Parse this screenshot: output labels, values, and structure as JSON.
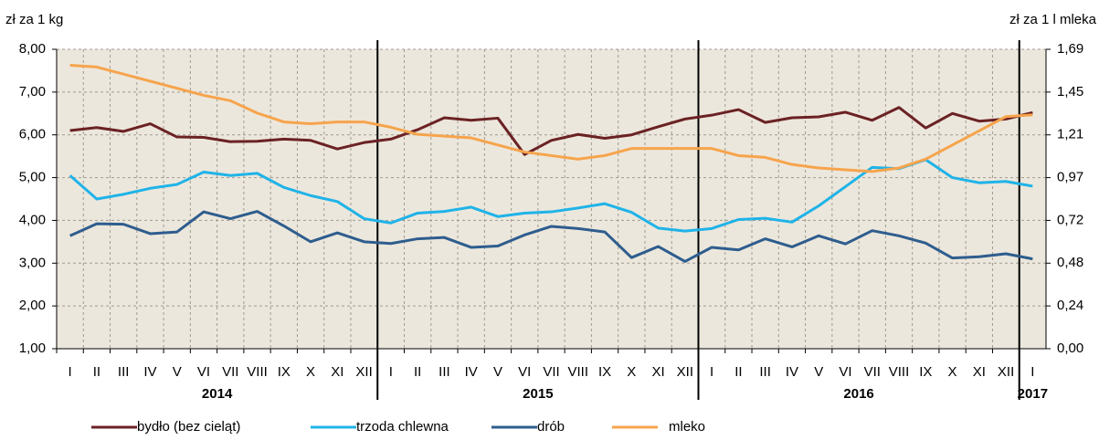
{
  "chart_data": {
    "type": "line",
    "y_label": "zł za 1 kg",
    "y2_label": "zł za 1 l mleka",
    "categories": [
      "I",
      "II",
      "III",
      "IV",
      "V",
      "VI",
      "VII",
      "VIII",
      "IX",
      "X",
      "XI",
      "XII",
      "I",
      "II",
      "III",
      "IV",
      "V",
      "VI",
      "VII",
      "VIII",
      "IX",
      "X",
      "XI",
      "XII",
      "I",
      "II",
      "III",
      "IV",
      "V",
      "VI",
      "VII",
      "VIII",
      "IX",
      "X",
      "XI",
      "XII",
      "I"
    ],
    "years": [
      "2014",
      "2015",
      "2016",
      "2017"
    ],
    "ylim": [
      1,
      8
    ],
    "yticks": [
      {
        "value": 1,
        "label": "1,00"
      },
      {
        "value": 2,
        "label": "2,00"
      },
      {
        "value": 3,
        "label": "3,00"
      },
      {
        "value": 4,
        "label": "4,00"
      },
      {
        "value": 5,
        "label": "5,00"
      },
      {
        "value": 6,
        "label": "6,00"
      },
      {
        "value": 7,
        "label": "7,00"
      },
      {
        "value": 8,
        "label": "8,00"
      }
    ],
    "y2lim": [
      0,
      1.69
    ],
    "y2ticks": [
      {
        "value": 0,
        "label": "0,00"
      },
      {
        "value": 0.2414,
        "label": "0,24"
      },
      {
        "value": 0.4829,
        "label": "0,48"
      },
      {
        "value": 0.7243,
        "label": "0,72"
      },
      {
        "value": 0.9657,
        "label": "0,97"
      },
      {
        "value": 1.2071,
        "label": "1,21"
      },
      {
        "value": 1.4486,
        "label": "1,45"
      },
      {
        "value": 1.69,
        "label": "1,69"
      }
    ],
    "grid": true,
    "series": [
      {
        "name": "bydło (bez cieląt)",
        "color": "#6b2224",
        "values": [
          6.1,
          6.17,
          6.08,
          6.26,
          5.95,
          5.94,
          5.84,
          5.85,
          5.9,
          5.87,
          5.67,
          5.82,
          5.9,
          6.12,
          6.4,
          6.34,
          6.39,
          5.54,
          5.87,
          6.01,
          5.92,
          6.0,
          6.19,
          6.37,
          6.46,
          6.59,
          6.29,
          6.4,
          6.42,
          6.53,
          6.34,
          6.64,
          6.16,
          6.5,
          6.32,
          6.37,
          6.52
        ]
      },
      {
        "name": "trzoda chlewna",
        "color": "#1fb3e8",
        "values": [
          5.05,
          4.5,
          4.61,
          4.75,
          4.84,
          5.13,
          5.05,
          5.1,
          4.77,
          4.58,
          4.44,
          4.04,
          3.94,
          4.17,
          4.21,
          4.31,
          4.09,
          4.17,
          4.2,
          4.29,
          4.39,
          4.19,
          3.82,
          3.75,
          3.81,
          4.02,
          4.05,
          3.96,
          4.34,
          4.79,
          5.24,
          5.21,
          5.42,
          5.0,
          4.88,
          4.91,
          4.8
        ]
      },
      {
        "name": "drób",
        "color": "#2e5d8e",
        "values": [
          3.64,
          3.92,
          3.91,
          3.69,
          3.73,
          4.2,
          4.04,
          4.21,
          3.87,
          3.5,
          3.71,
          3.5,
          3.46,
          3.57,
          3.6,
          3.37,
          3.4,
          3.66,
          3.86,
          3.81,
          3.73,
          3.13,
          3.39,
          3.04,
          3.37,
          3.31,
          3.57,
          3.38,
          3.64,
          3.45,
          3.76,
          3.64,
          3.47,
          3.12,
          3.15,
          3.22,
          3.1
        ]
      },
      {
        "name": "mleko",
        "color": "#f6a44c",
        "axis": "y2",
        "values": [
          1.6,
          1.59,
          1.55,
          1.51,
          1.47,
          1.43,
          1.4,
          1.33,
          1.28,
          1.27,
          1.28,
          1.28,
          1.25,
          1.21,
          1.2,
          1.19,
          1.15,
          1.11,
          1.09,
          1.07,
          1.09,
          1.13,
          1.13,
          1.13,
          1.13,
          1.09,
          1.08,
          1.04,
          1.02,
          1.01,
          1.0,
          1.02,
          1.07,
          1.15,
          1.23,
          1.31,
          1.32
        ]
      }
    ]
  }
}
